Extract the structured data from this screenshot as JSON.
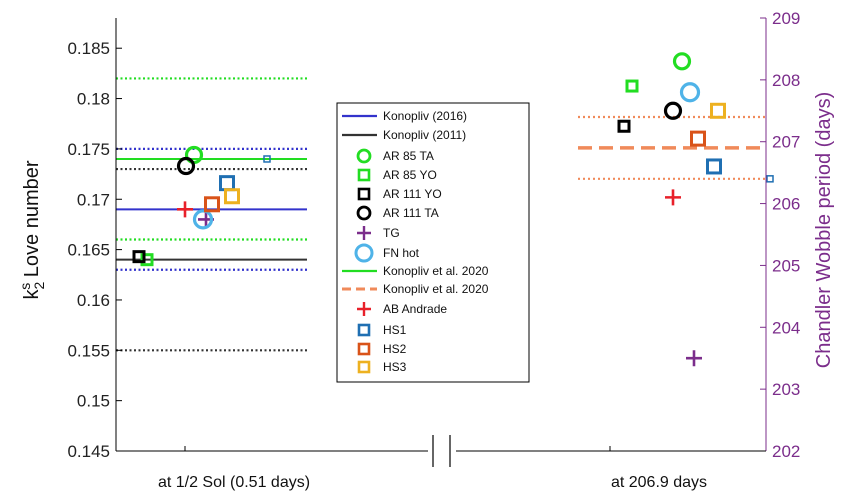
{
  "chart_data": {
    "type": "scatter",
    "ylabel": "k₂ˢ Love number",
    "ylabel_main": "k",
    "ylabel_sub": "2",
    "ylabel_sup": "s",
    "ylabel_rest": " Love number",
    "y2label": "Chandler Wobble period (days)",
    "ylim": [
      0.145,
      0.188
    ],
    "y2lim": [
      202,
      209
    ],
    "yticks": [
      "0.145",
      "0.15",
      "0.155",
      "0.16",
      "0.165",
      "0.17",
      "0.175",
      "0.18",
      "0.185"
    ],
    "y2ticks": [
      "202",
      "203",
      "204",
      "205",
      "206",
      "207",
      "208",
      "209"
    ],
    "categories": [
      "at 1/2 Sol (0.51 days)",
      "at 206.9 days"
    ],
    "colors": {
      "konopliv2016": "#3333cc",
      "konopliv2011": "#333333",
      "green": "#22dd22",
      "black": "#000000",
      "purple": "#7b2d8b",
      "lightblue": "#4fb3e8",
      "orange": "#f08a5a",
      "red": "#e8202a",
      "hs1": "#1f6fb2",
      "hs2": "#d95319",
      "hs3": "#edb120"
    },
    "left_lines": [
      {
        "series": "Konopliv (2016)",
        "y": 0.169,
        "style": "solid"
      },
      {
        "series": "Konopliv (2016)",
        "y": 0.175,
        "style": "dotted"
      },
      {
        "series": "Konopliv (2016)",
        "y": 0.163,
        "style": "dotted"
      },
      {
        "series": "Konopliv (2011)",
        "y": 0.164,
        "style": "solid"
      },
      {
        "series": "Konopliv (2011)",
        "y": 0.173,
        "style": "dotted"
      },
      {
        "series": "Konopliv (2011)",
        "y": 0.155,
        "style": "dotted"
      },
      {
        "series": "Konopliv et al. 2020 (k2)",
        "y": 0.174,
        "style": "solid"
      },
      {
        "series": "Konopliv et al. 2020 (k2)",
        "y": 0.182,
        "style": "dotted"
      },
      {
        "series": "Konopliv et al. 2020 (k2)",
        "y": 0.166,
        "style": "dotted"
      }
    ],
    "right_lines": [
      {
        "series": "Konopliv et al. 2020 (CW)",
        "y": 206.9,
        "style": "dashed"
      },
      {
        "series": "Konopliv et al. 2020 (CW)",
        "y": 207.4,
        "style": "dotted"
      },
      {
        "series": "Konopliv et al. 2020 (CW)",
        "y": 206.4,
        "style": "dotted"
      }
    ],
    "left_points": [
      {
        "series": "AR 85 TA",
        "y": 0.1744
      },
      {
        "series": "AR 85 YO",
        "y": 0.164
      },
      {
        "series": "AR 111 YO",
        "y": 0.1643
      },
      {
        "series": "AR 111 TA",
        "y": 0.1733
      },
      {
        "series": "TG",
        "y": 0.168
      },
      {
        "series": "FN hot",
        "y": 0.168
      },
      {
        "series": "AB Andrade",
        "y": 0.169
      },
      {
        "series": "HS1",
        "y": 0.1716
      },
      {
        "series": "HS2",
        "y": 0.1695
      },
      {
        "series": "HS3",
        "y": 0.1703
      }
    ],
    "right_points": [
      {
        "series": "AR 85 TA",
        "y": 208.3
      },
      {
        "series": "AR 85 YO",
        "y": 207.9
      },
      {
        "series": "AR 111 YO",
        "y": 207.25
      },
      {
        "series": "AR 111 TA",
        "y": 207.5
      },
      {
        "series": "TG",
        "y": 203.5
      },
      {
        "series": "FN hot",
        "y": 207.8
      },
      {
        "series": "AB Andrade",
        "y": 206.1
      },
      {
        "series": "HS1",
        "y": 206.6
      },
      {
        "series": "HS2",
        "y": 207.05
      },
      {
        "series": "HS3",
        "y": 207.5
      }
    ],
    "legend": [
      {
        "label": "Konopliv (2016)",
        "marker": "line",
        "color": "#3333cc"
      },
      {
        "label": "Konopliv (2011)",
        "marker": "line",
        "color": "#333333"
      },
      {
        "label": "AR 85 TA",
        "marker": "circle",
        "color": "#22dd22"
      },
      {
        "label": "AR 85 YO",
        "marker": "square",
        "color": "#22dd22"
      },
      {
        "label": "AR 111 YO",
        "marker": "square",
        "color": "#000000"
      },
      {
        "label": "AR 111 TA",
        "marker": "circle",
        "color": "#000000"
      },
      {
        "label": "TG",
        "marker": "plus",
        "color": "#7b2d8b"
      },
      {
        "label": "FN hot",
        "marker": "circle-big",
        "color": "#4fb3e8"
      },
      {
        "label": "Konopliv et al. 2020",
        "marker": "line",
        "color": "#22dd22"
      },
      {
        "label": "Konopliv et al. 2020",
        "marker": "dashline",
        "color": "#f08a5a"
      },
      {
        "label": "AB Andrade",
        "marker": "plus",
        "color": "#e8202a"
      },
      {
        "label": "HS1",
        "marker": "square",
        "color": "#1f6fb2"
      },
      {
        "label": "HS2",
        "marker": "square",
        "color": "#d95319"
      },
      {
        "label": "HS3",
        "marker": "square",
        "color": "#edb120"
      }
    ],
    "legend_placement": "center",
    "grid": false
  }
}
